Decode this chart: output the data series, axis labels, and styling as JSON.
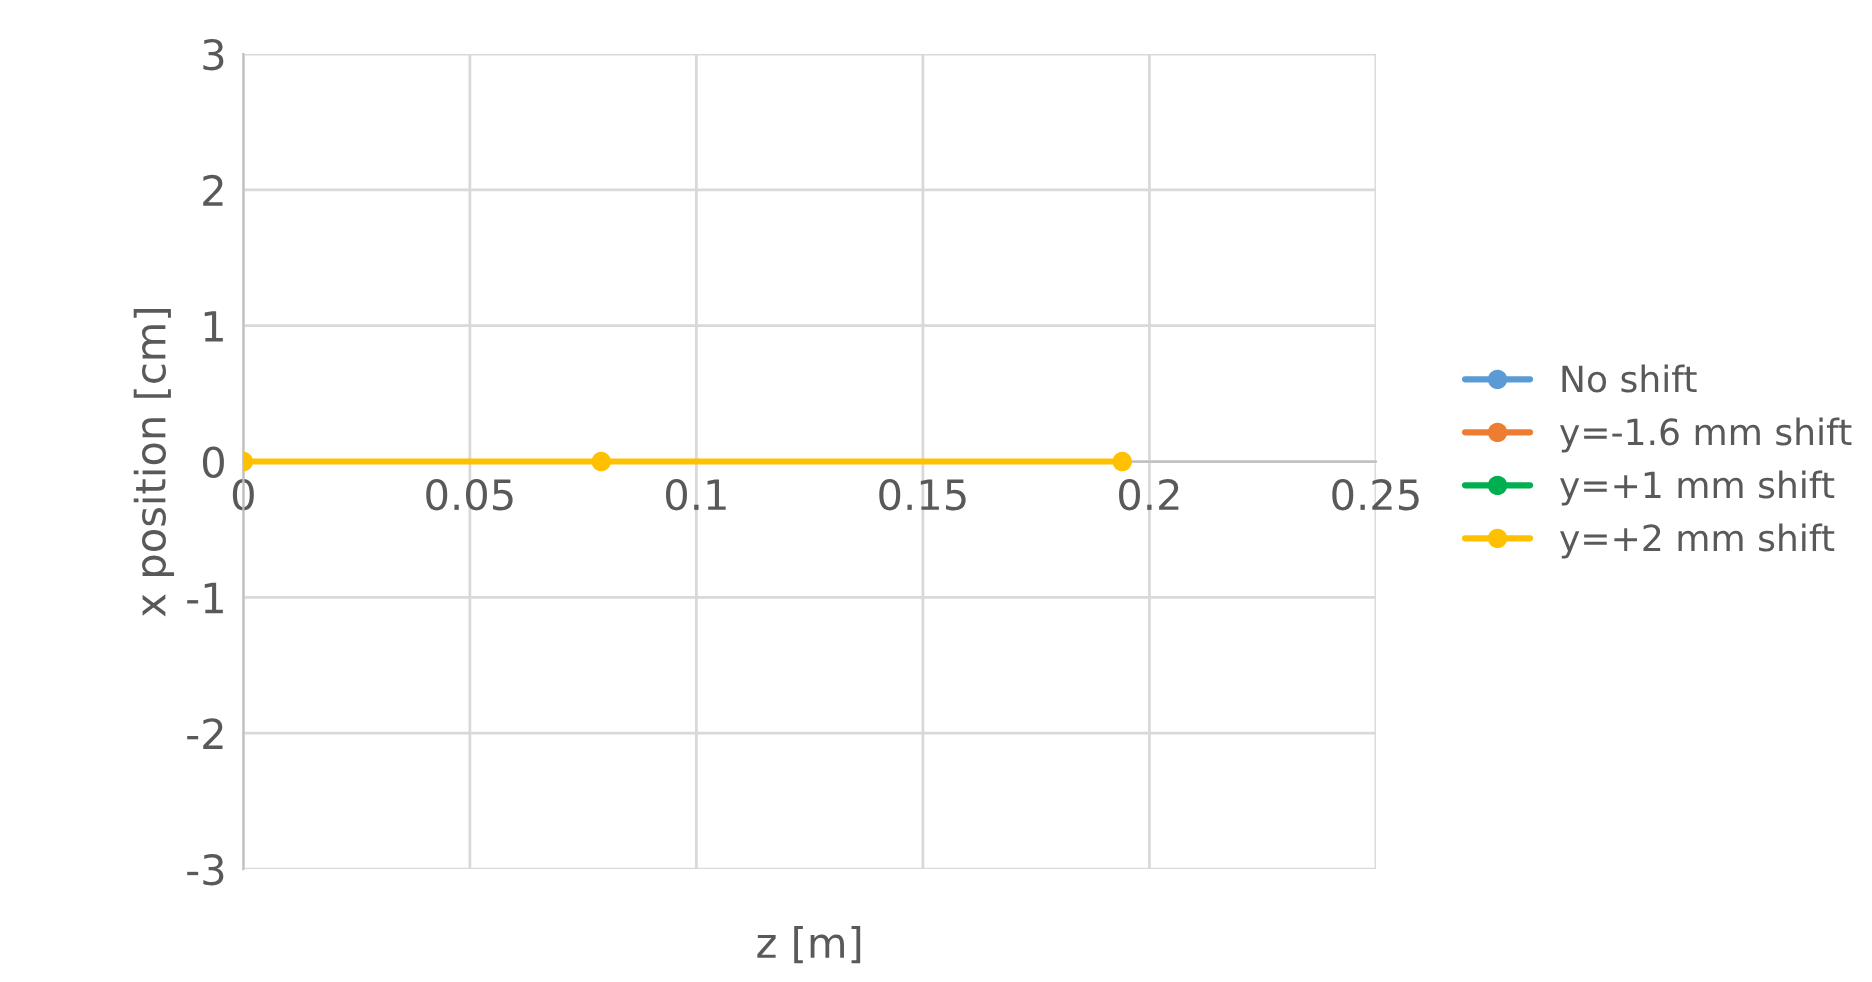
{
  "chart_data": {
    "type": "line",
    "xlabel": "z [m]",
    "ylabel": "x position [cm]",
    "x": [
      0,
      0.079,
      0.194
    ],
    "series": [
      {
        "name": "No shift",
        "color": "#5b9bd5",
        "values": [
          null,
          null,
          null
        ]
      },
      {
        "name": "y=-1.6 mm shift",
        "color": "#ed7d31",
        "values": [
          null,
          null,
          null
        ]
      },
      {
        "name": "y=+1 mm shift",
        "color": "#00b050",
        "values": [
          null,
          null,
          null
        ]
      },
      {
        "name": "y=+2 mm shift",
        "color": "#ffc000",
        "values": [
          0,
          0,
          0
        ]
      }
    ],
    "xlim": [
      0,
      0.25
    ],
    "xticks": [
      0,
      0.05,
      0.1,
      0.15,
      0.2,
      0.25
    ],
    "ylim": [
      -3,
      3
    ],
    "yticks": [
      -3,
      -2,
      -1,
      0,
      1,
      2,
      3
    ],
    "grid": true,
    "legend": "right",
    "marker": "circle",
    "line_style": "solid"
  }
}
